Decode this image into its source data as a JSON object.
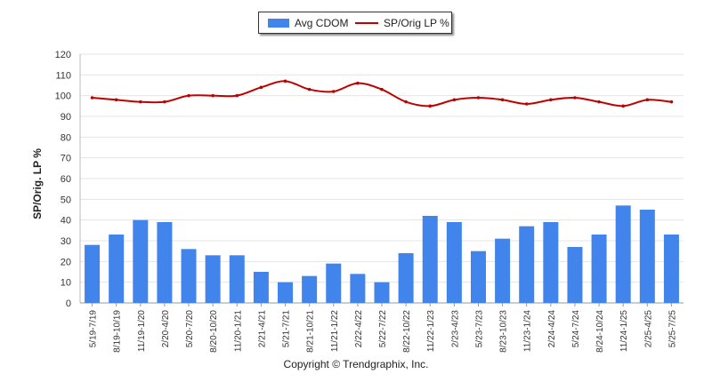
{
  "chart_data": {
    "type": "bar",
    "categories": [
      "5/19-7/19",
      "8/19-10/19",
      "11/19-1/20",
      "2/20-4/20",
      "5/20-7/20",
      "8/20-10/20",
      "11/20-1/21",
      "2/21-4/21",
      "5/21-7/21",
      "8/21-10/21",
      "11/21-1/22",
      "2/22-4/22",
      "5/22-7/22",
      "8/22-10/22",
      "11/22-1/23",
      "2/23-4/23",
      "5/23-7/23",
      "8/23-10/23",
      "11/23-1/24",
      "2/24-4/24",
      "5/24-7/24",
      "8/24-10/24",
      "11/24-1/25",
      "2/25-4/25",
      "5/25-7/25"
    ],
    "series": [
      {
        "name": "Avg CDOM",
        "kind": "bar",
        "color": "#4185ec",
        "values": [
          28,
          33,
          40,
          39,
          26,
          23,
          23,
          15,
          10,
          13,
          19,
          14,
          10,
          24,
          42,
          39,
          25,
          31,
          37,
          39,
          27,
          33,
          47,
          45,
          33
        ]
      },
      {
        "name": "SP/Orig LP %",
        "kind": "line",
        "color": "#c00000",
        "values": [
          99,
          98,
          97,
          97,
          100,
          100,
          100,
          104,
          107,
          103,
          102,
          106,
          103,
          97,
          95,
          98,
          99,
          98,
          96,
          98,
          99,
          97,
          95,
          98,
          97
        ]
      }
    ],
    "ylabel": "SP/Orig. LP %",
    "ylim": [
      0,
      120
    ],
    "yticks": [
      0,
      10,
      20,
      30,
      40,
      50,
      60,
      70,
      80,
      90,
      100,
      110,
      120
    ],
    "grid": true,
    "legend": "top-center"
  },
  "footer": {
    "copyright": "Copyright © Trendgraphix, Inc."
  }
}
